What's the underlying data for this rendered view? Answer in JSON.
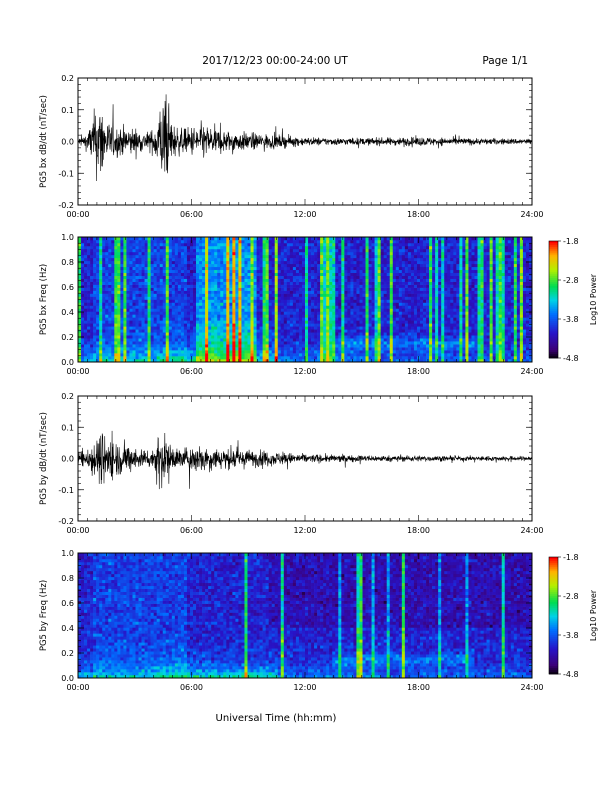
{
  "header": {
    "title": "2017/12/23  00:00-24:00 UT",
    "page": "Page 1/1"
  },
  "xaxis_title": "Universal Time (hh:mm)",
  "chart_data": [
    {
      "type": "line",
      "ylabel": "PG5 bx dB/dt (nT/sec)",
      "xlim": [
        0,
        24
      ],
      "ylim": [
        -0.2,
        0.2
      ],
      "xtick_labels": [
        "00:00",
        "06:00",
        "12:00",
        "18:00",
        "24:00"
      ],
      "ytick_labels": [
        "-0.2",
        "-0.1",
        "0.0",
        "0.1",
        "0.2"
      ],
      "ytick_values": [
        -0.2,
        -0.1,
        0.0,
        0.1,
        0.2
      ],
      "envelope": {
        "x_hours": [
          0,
          0.5,
          0.9,
          1.2,
          1.5,
          2.0,
          2.5,
          3.0,
          3.5,
          4.0,
          4.3,
          4.6,
          5.0,
          5.5,
          6.5,
          7.0,
          8.0,
          9.0,
          10.0,
          12.0,
          14.0,
          16.0,
          18.0,
          20.0,
          22.0,
          24.0
        ],
        "amplitude": [
          0.012,
          0.03,
          0.11,
          0.14,
          0.07,
          0.05,
          0.05,
          0.045,
          0.03,
          0.04,
          0.12,
          0.15,
          0.06,
          0.04,
          0.06,
          0.05,
          0.035,
          0.03,
          0.025,
          0.014,
          0.012,
          0.012,
          0.015,
          0.012,
          0.01,
          0.01
        ]
      }
    },
    {
      "type": "heatmap",
      "ylabel": "PG5 bx Freq (Hz)",
      "xlim": [
        0,
        24
      ],
      "ylim": [
        0.0,
        1.0
      ],
      "xtick_labels": [
        "00:00",
        "06:00",
        "12:00",
        "18:00",
        "24:00"
      ],
      "ytick_labels": [
        "0.0",
        "0.2",
        "0.4",
        "0.6",
        "0.8",
        "1.0"
      ],
      "ytick_values": [
        0.0,
        0.2,
        0.4,
        0.6,
        0.8,
        1.0
      ],
      "colorbar": {
        "label": "Log10 Power",
        "range": [
          -4.8,
          -1.8
        ],
        "tick_labels": [
          "-1.8",
          "-2.8",
          "-3.8",
          "-4.8"
        ],
        "tick_values": [
          -1.8,
          -2.8,
          -3.8,
          -4.8
        ]
      },
      "bright_band_hours": [
        6.2,
        9.5
      ]
    },
    {
      "type": "line",
      "ylabel": "PG5 by dB/dt (nT/sec)",
      "xlim": [
        0,
        24
      ],
      "ylim": [
        -0.2,
        0.2
      ],
      "xtick_labels": [
        "00:00",
        "06:00",
        "12:00",
        "18:00",
        "24:00"
      ],
      "ytick_labels": [
        "-0.2",
        "-0.1",
        "0.0",
        "0.1",
        "0.2"
      ],
      "ytick_values": [
        -0.2,
        -0.1,
        0.0,
        0.1,
        0.2
      ],
      "envelope": {
        "x_hours": [
          0,
          0.5,
          1.0,
          1.4,
          2.0,
          2.5,
          3.0,
          3.5,
          4.0,
          4.3,
          4.6,
          5.0,
          5.5,
          6.5,
          7.0,
          8.0,
          9.0,
          10.0,
          12.0,
          14.0,
          16.0,
          18.0,
          20.0,
          22.0,
          24.0
        ],
        "amplitude": [
          0.02,
          0.04,
          0.07,
          0.1,
          0.06,
          0.05,
          0.04,
          0.03,
          0.035,
          0.11,
          0.07,
          0.04,
          0.035,
          0.05,
          0.04,
          0.035,
          0.03,
          0.025,
          0.015,
          0.012,
          0.01,
          0.01,
          0.008,
          0.008,
          0.008
        ]
      }
    },
    {
      "type": "heatmap",
      "ylabel": "PG5 by Freq (Hz)",
      "xlim": [
        0,
        24
      ],
      "ylim": [
        0.0,
        1.0
      ],
      "xtick_labels": [
        "00:00",
        "06:00",
        "12:00",
        "18:00",
        "24:00"
      ],
      "ytick_labels": [
        "0.0",
        "0.2",
        "0.4",
        "0.6",
        "0.8",
        "1.0"
      ],
      "ytick_values": [
        0.0,
        0.2,
        0.4,
        0.6,
        0.8,
        1.0
      ],
      "colorbar": {
        "label": "Log10 Power",
        "range": [
          -4.8,
          -1.8
        ],
        "tick_labels": [
          "-1.8",
          "-2.8",
          "-3.8",
          "-4.8"
        ],
        "tick_values": [
          -1.8,
          -2.8,
          -3.8,
          -4.8
        ]
      },
      "bright_band_hours": []
    }
  ]
}
